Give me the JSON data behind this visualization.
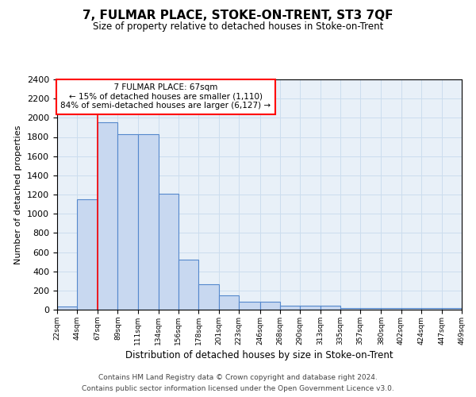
{
  "title": "7, FULMAR PLACE, STOKE-ON-TRENT, ST3 7QF",
  "subtitle": "Size of property relative to detached houses in Stoke-on-Trent",
  "xlabel": "Distribution of detached houses by size in Stoke-on-Trent",
  "ylabel": "Number of detached properties",
  "footnote1": "Contains HM Land Registry data © Crown copyright and database right 2024.",
  "footnote2": "Contains public sector information licensed under the Open Government Licence v3.0.",
  "annotation_title": "7 FULMAR PLACE: 67sqm",
  "annotation_line1": "← 15% of detached houses are smaller (1,110)",
  "annotation_line2": "84% of semi-detached houses are larger (6,127) →",
  "property_size_sqm": 67,
  "bar_edges": [
    22,
    44,
    67,
    89,
    111,
    134,
    156,
    178,
    201,
    223,
    246,
    268,
    290,
    313,
    335,
    357,
    380,
    402,
    424,
    447,
    469
  ],
  "bar_heights": [
    30,
    1150,
    1950,
    1830,
    1830,
    1210,
    520,
    265,
    150,
    85,
    85,
    45,
    45,
    40,
    20,
    20,
    20,
    15,
    15,
    20
  ],
  "bar_color": "#c8d8f0",
  "bar_edge_color": "#5588cc",
  "red_line_x": 67,
  "ylim": [
    0,
    2400
  ],
  "yticks": [
    0,
    200,
    400,
    600,
    800,
    1000,
    1200,
    1400,
    1600,
    1800,
    2000,
    2200,
    2400
  ],
  "annotation_box_color": "white",
  "annotation_box_edge": "red",
  "grid_color": "#ccddee",
  "bg_color": "#e8f0f8"
}
